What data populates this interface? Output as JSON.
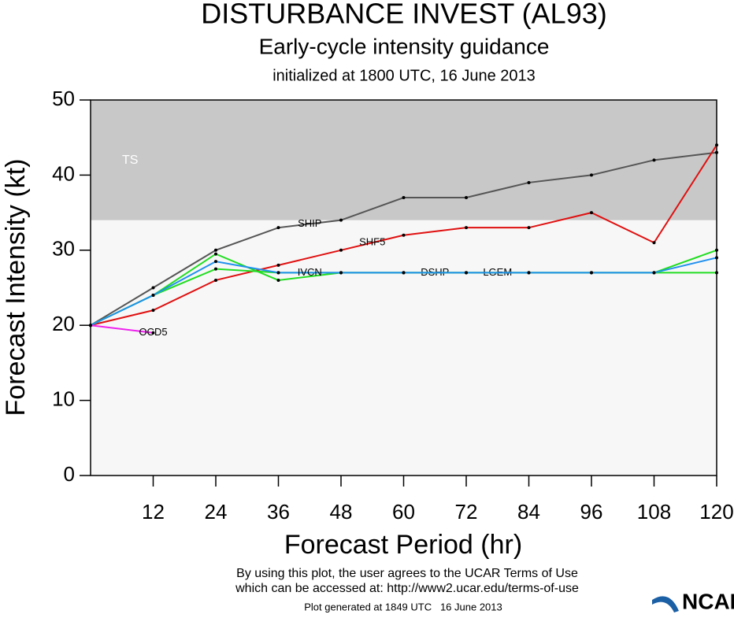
{
  "chart_data": {
    "type": "line",
    "title": "DISTURBANCE INVEST (AL93)",
    "subtitle": "Early-cycle intensity guidance",
    "initialized": "initialized at 1800 UTC, 16 June 2013",
    "x_label": "Forecast Period (hr)",
    "y_label": "Forecast Intensity (kt)",
    "x": [
      0,
      12,
      24,
      36,
      48,
      60,
      72,
      84,
      96,
      108,
      120
    ],
    "xlim": [
      0,
      120
    ],
    "xticks": [
      12,
      24,
      36,
      48,
      60,
      72,
      84,
      96,
      108,
      120
    ],
    "ylim": [
      0,
      50
    ],
    "yticks": [
      0,
      10,
      20,
      30,
      40,
      50
    ],
    "bands": [
      {
        "label": "TS",
        "from": 34,
        "to": 50,
        "color": "#c8c8c8"
      }
    ],
    "series": [
      {
        "name": "SHIP",
        "color": "#555555",
        "values": [
          20,
          25,
          30,
          33,
          34,
          37,
          37,
          39,
          40,
          42,
          43
        ]
      },
      {
        "name": "SHF5",
        "color": "#e01010",
        "values": [
          20,
          22,
          26,
          28,
          30,
          32,
          33,
          33,
          35,
          31,
          44
        ]
      },
      {
        "name": "DSHP",
        "color": "#22dd22",
        "values": [
          20,
          24,
          29.5,
          26,
          27,
          27,
          27,
          27,
          27,
          27,
          30
        ]
      },
      {
        "name": "LGEM",
        "color": "#22dd22",
        "values": [
          20,
          24,
          27.5,
          27,
          27,
          27,
          27,
          27,
          27,
          27,
          27
        ]
      },
      {
        "name": "IVCN",
        "color": "#2090ee",
        "values": [
          20,
          24,
          28.5,
          27,
          27,
          27,
          27,
          27,
          27,
          27,
          29
        ]
      },
      {
        "name": "OCD5",
        "color": "#ee22ee",
        "values": [
          20,
          19,
          null,
          null,
          null,
          null,
          null,
          null,
          null,
          null,
          null
        ]
      }
    ]
  },
  "footer": {
    "line1": "By using this plot, the user agrees to the UCAR Terms of Use",
    "line2": "which can be accessed at: http://www2.ucar.edu/terms-of-use",
    "generated": "Plot generated at 1849 UTC   16 June 2013",
    "logo": "NCAR"
  }
}
